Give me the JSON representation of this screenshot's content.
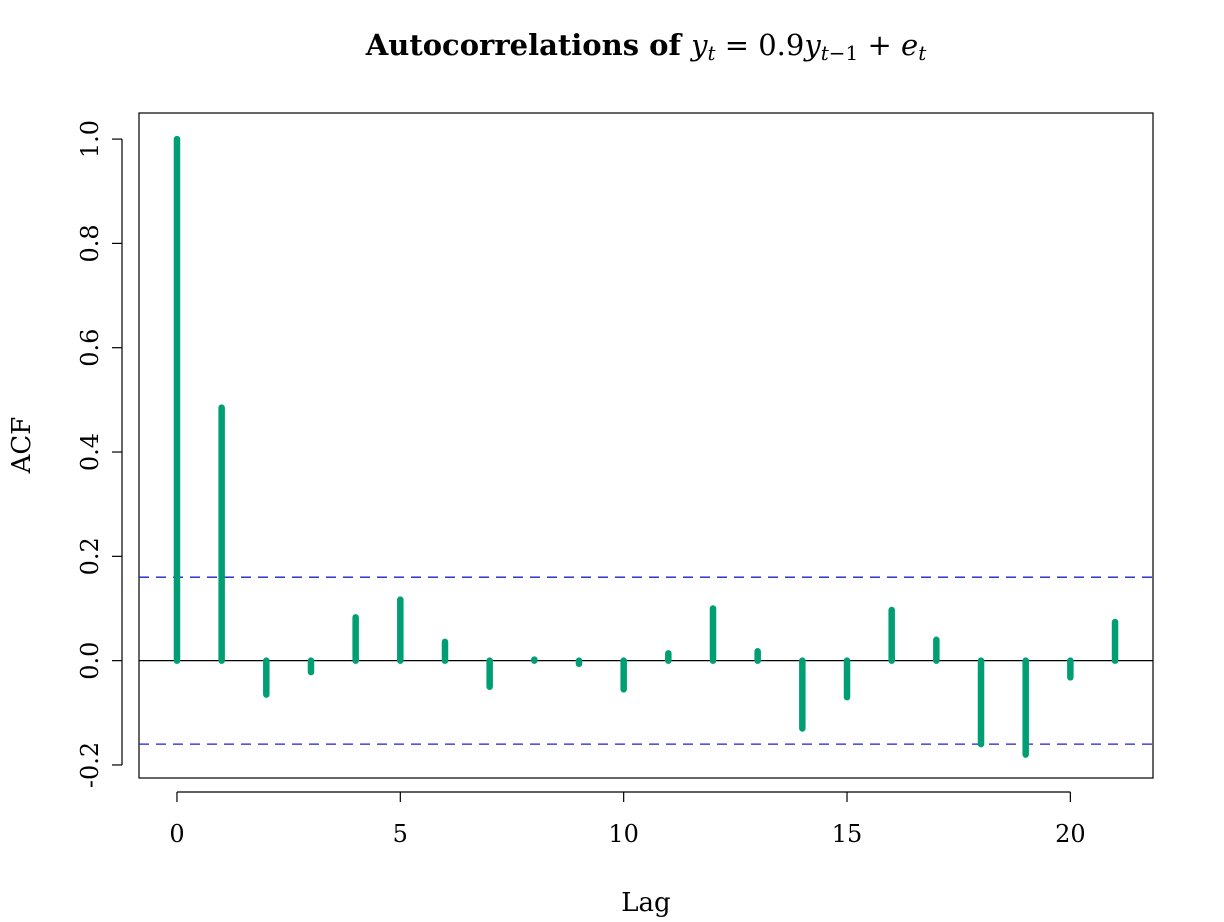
{
  "chart_data": {
    "type": "bar",
    "title": {
      "bold": "Autocorrelations of ",
      "math_parts": [
        {
          "text": "y",
          "style": "italic"
        },
        {
          "text": "t",
          "style": "sub-italic"
        },
        {
          "text": " = 0.9",
          "style": "normal"
        },
        {
          "text": "y",
          "style": "italic"
        },
        {
          "text": "t",
          "style": "sub-italic"
        },
        {
          "text": "−1",
          "style": "sub"
        },
        {
          "text": " + ",
          "style": "normal"
        },
        {
          "text": "e",
          "style": "italic"
        },
        {
          "text": "t",
          "style": "sub-italic"
        }
      ]
    },
    "xlabel": "Lag",
    "ylabel": "ACF",
    "xlim": [
      -0.85,
      21.85
    ],
    "ylim": [
      -0.225,
      1.05
    ],
    "xticks": [
      0,
      5,
      10,
      15,
      20
    ],
    "yticks": [
      -0.2,
      0.0,
      0.2,
      0.4,
      0.6,
      0.8,
      1.0
    ],
    "ytick_labels": [
      "-0.2",
      "0.0",
      "0.2",
      "0.4",
      "0.6",
      "0.8",
      "1.0"
    ],
    "lags": [
      0,
      1,
      2,
      3,
      4,
      5,
      6,
      7,
      8,
      9,
      10,
      11,
      12,
      13,
      14,
      15,
      16,
      17,
      18,
      19,
      20,
      21
    ],
    "values": [
      1.0,
      0.485,
      -0.065,
      -0.022,
      0.083,
      0.117,
      0.036,
      -0.05,
      0.002,
      -0.006,
      -0.055,
      0.014,
      0.1,
      0.018,
      -0.13,
      -0.07,
      0.097,
      0.04,
      -0.16,
      -0.18,
      -0.032,
      0.074
    ],
    "confidence_bound": 0.16,
    "grid": false,
    "colors": {
      "bar": "#009E73",
      "bound": "#1F1FCC",
      "zero_line": "#000000"
    }
  }
}
